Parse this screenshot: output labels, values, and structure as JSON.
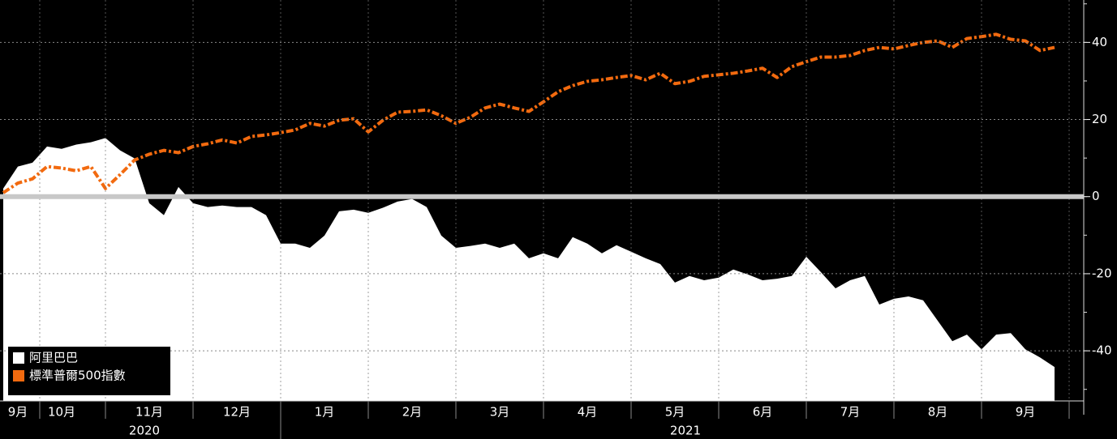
{
  "chart_data": {
    "type": "area-line",
    "categories": [
      null,
      "9月",
      null,
      null,
      "10月",
      null,
      null,
      null,
      null,
      null,
      "11月",
      null,
      null,
      null,
      null,
      null,
      "12月",
      null,
      null,
      null,
      null,
      null,
      "1月",
      null,
      null,
      null,
      null,
      null,
      "2月",
      null,
      null,
      null,
      null,
      null,
      "3月",
      null,
      null,
      null,
      null,
      null,
      "4月",
      null,
      null,
      null,
      null,
      null,
      "5月",
      null,
      null,
      null,
      null,
      null,
      "6月",
      null,
      null,
      null,
      null,
      null,
      "7月",
      null,
      null,
      null,
      null,
      null,
      "8月",
      null,
      null,
      null,
      null,
      null,
      "9月",
      null,
      null
    ],
    "year_labels": [
      "2020",
      "2021"
    ],
    "series": [
      {
        "name": "阿里巴巴",
        "color": "#ffffff",
        "kind": "area",
        "values": [
          2.1,
          7.8,
          8.8,
          13,
          12.4,
          13.5,
          14.1,
          15.2,
          12,
          9.9,
          -1.7,
          -4.8,
          2.5,
          -1.7,
          -2.7,
          -2.3,
          -2.7,
          -2.7,
          -4.8,
          -12.2,
          -12.2,
          -13.3,
          -10.1,
          -3.8,
          -3.4,
          -4.2,
          -2.9,
          -1.3,
          -0.6,
          -2.7,
          -10.1,
          -13.3,
          -12.8,
          -12.2,
          -13.3,
          -12.2,
          -16,
          -14.7,
          -16,
          -10.5,
          -12.2,
          -14.7,
          -12.6,
          -14.3,
          -16,
          -17.5,
          -22.3,
          -20.6,
          -21.7,
          -21,
          -18.9,
          -20.2,
          -21.7,
          -21.3,
          -20.6,
          -15.6,
          -19.6,
          -23.8,
          -21.7,
          -20.6,
          -28,
          -26.5,
          -25.9,
          -26.9,
          -32.2,
          -37.5,
          -35.8,
          -39.6,
          -35.8,
          -35.4,
          -39.6,
          -41.7,
          -44.2
        ]
      },
      {
        "name": "標準普爾500指數",
        "color": "#f26a0f",
        "kind": "line",
        "values": [
          1,
          3.5,
          4.6,
          7.8,
          7.4,
          6.7,
          7.8,
          2.1,
          5.7,
          9.5,
          11,
          12,
          11.4,
          13,
          13.7,
          14.7,
          13.9,
          15.6,
          16,
          16.6,
          17.3,
          19,
          18.3,
          19.8,
          20.2,
          16.8,
          19.8,
          21.9,
          22.1,
          22.5,
          21,
          19,
          20.6,
          23,
          24,
          23,
          22.1,
          24.6,
          27.2,
          28.8,
          29.9,
          30.3,
          30.9,
          31.4,
          30.3,
          32,
          29.3,
          29.9,
          31.2,
          31.6,
          32,
          32.6,
          33.3,
          30.9,
          33.7,
          35,
          36.2,
          36.2,
          36.6,
          37.9,
          38.7,
          38.3,
          39.2,
          40,
          40.4,
          38.7,
          41,
          41.5,
          42.1,
          40.8,
          40.4,
          37.9,
          38.7
        ]
      }
    ],
    "ylim": [
      -53,
      51
    ],
    "yticks": [
      -40,
      -20,
      0,
      20,
      40
    ],
    "grid": true,
    "legend": "bottom-left"
  }
}
